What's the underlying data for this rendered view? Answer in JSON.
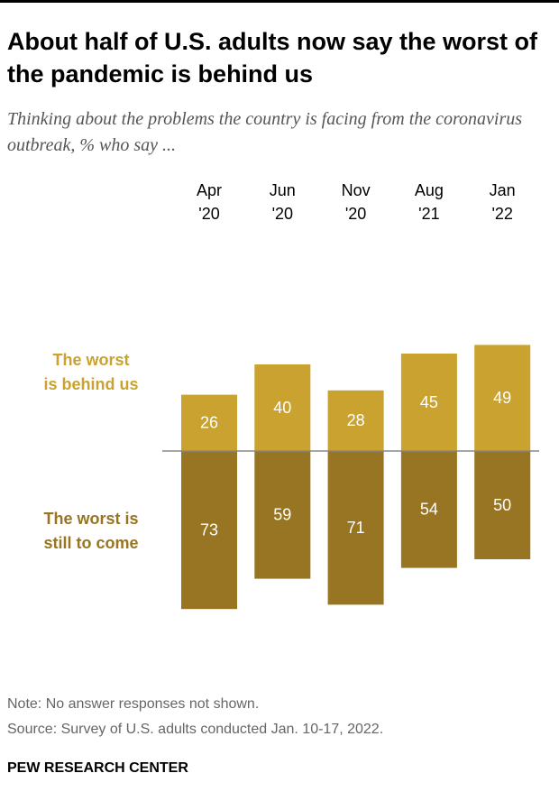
{
  "chart_data": {
    "type": "diverging-bar",
    "title": "About half of U.S.  adults now say the worst of the pandemic is behind us",
    "subtitle": "Thinking about the problems the country is facing from the coronavirus outbreak, % who say ...",
    "categories": [
      "Apr\n'20",
      "Jun\n'20",
      "Nov\n'20",
      "Aug\n'21",
      "Jan\n'22"
    ],
    "series": [
      {
        "name": "The worst\nis behind us",
        "color": "#c9a230",
        "values": [
          26,
          40,
          28,
          45,
          49
        ]
      },
      {
        "name": "The worst is\nstill to come",
        "color": "#977522",
        "values": [
          73,
          59,
          71,
          54,
          50
        ]
      }
    ],
    "note": "Note: No answer responses not shown.",
    "source": "Source: Survey of U.S. adults conducted Jan. 10-17, 2022.",
    "credit": "PEW RESEARCH CENTER"
  }
}
